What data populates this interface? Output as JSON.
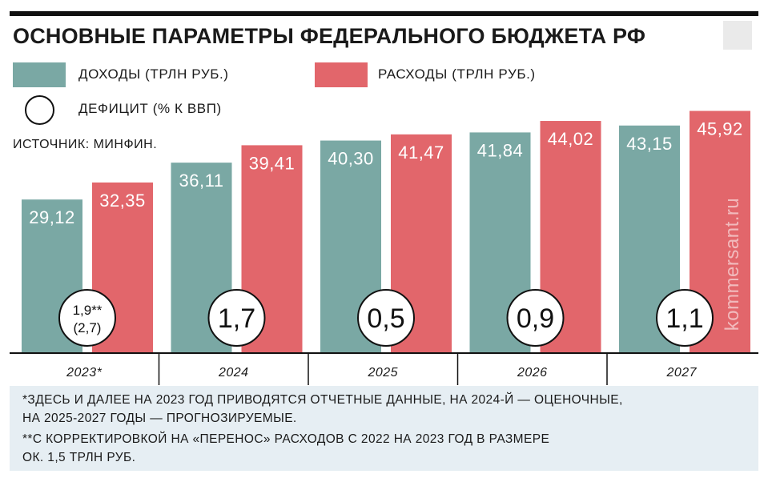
{
  "title": "ОСНОВНЫЕ ПАРАМЕТРЫ ФЕДЕРАЛЬНОГО БЮДЖЕТА РФ",
  "legend": {
    "income": "ДОХОДЫ (ТРЛН РУБ.)",
    "expenses": "РАСХОДЫ (ТРЛН РУБ.)",
    "deficit": "ДЕФИЦИТ (% К ВВП)"
  },
  "source": "ИСТОЧНИК: МИНФИН.",
  "watermark": "kommersant.ru",
  "colors": {
    "income": "#7aa8a4",
    "expenses": "#e2666b",
    "notes_bg": "#e6eef3"
  },
  "notes": {
    "line1": "*ЗДЕСЬ И ДАЛЕЕ НА 2023 ГОД ПРИВОДЯТСЯ ОТЧЕТНЫЕ ДАННЫЕ, НА 2024-Й — ОЦЕНОЧНЫЕ,",
    "line2": "НА 2025-2027 ГОДЫ — ПРОГНОЗИРУЕМЫЕ.",
    "line3": "**С КОРРЕКТИРОВКОЙ НА «ПЕРЕНОС» РАСХОДОВ С 2022 НА 2023 ГОД В РАЗМЕРЕ",
    "line4": "ОК. 1,5 ТРЛН РУБ."
  },
  "chart_data": {
    "type": "bar",
    "categories": [
      "2023*",
      "2024",
      "2025",
      "2026",
      "2027"
    ],
    "series": [
      {
        "name": "ДОХОДЫ (ТРЛН РУБ.)",
        "values": [
          29.12,
          36.11,
          40.3,
          41.84,
          43.15
        ],
        "labels": [
          "29,12",
          "36,11",
          "40,30",
          "41,84",
          "43,15"
        ]
      },
      {
        "name": "РАСХОДЫ (ТРЛН РУБ.)",
        "values": [
          32.35,
          39.41,
          41.47,
          44.02,
          45.92
        ],
        "labels": [
          "32,35",
          "39,41",
          "41,47",
          "44,02",
          "45,92"
        ]
      }
    ],
    "deficit": [
      {
        "line1": "1,9**",
        "line2": "(2,7)"
      },
      {
        "line1": "1,7"
      },
      {
        "line1": "0,5"
      },
      {
        "line1": "0,9"
      },
      {
        "line1": "1,1"
      }
    ],
    "ylim": [
      0,
      46
    ],
    "grid": false
  }
}
